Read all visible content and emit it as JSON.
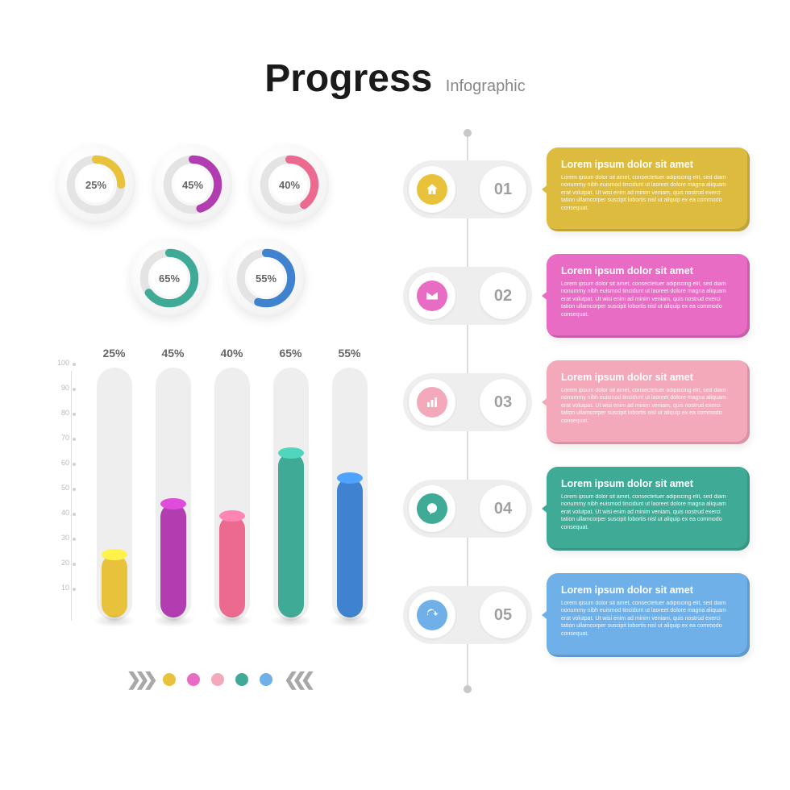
{
  "title": {
    "main": "Progress",
    "sub": "Infographic"
  },
  "colors": {
    "yellow": "#e9c23b",
    "purple": "#b23db0",
    "pink": "#ec6a8f",
    "teal": "#3fab97",
    "blue": "#3e82d0",
    "card_yellow": "#dcbb3f",
    "card_magenta": "#e86cc3",
    "card_pink": "#f4a9bb",
    "card_teal": "#3fab97",
    "card_blue": "#6fb0e8",
    "track": "#eeeeee",
    "grid": "#e0e0e0",
    "text_muted": "#888888",
    "bubble": "#eeeeee"
  },
  "donuts": [
    {
      "value": 25,
      "label": "25%",
      "color": "#e9c23b"
    },
    {
      "value": 45,
      "label": "45%",
      "color": "#b23db0"
    },
    {
      "value": 40,
      "label": "40%",
      "color": "#ec6a8f"
    },
    {
      "value": 65,
      "label": "65%",
      "color": "#3fab97"
    },
    {
      "value": 55,
      "label": "55%",
      "color": "#3e82d0"
    }
  ],
  "barchart": {
    "ylim": [
      0,
      100
    ],
    "yticks": [
      10,
      20,
      30,
      40,
      50,
      60,
      70,
      80,
      90,
      100
    ],
    "bars": [
      {
        "pct": "25%",
        "value": 25,
        "color": "#e9c23b"
      },
      {
        "pct": "45%",
        "value": 45,
        "color": "#b23db0"
      },
      {
        "pct": "40%",
        "value": 40,
        "color": "#ec6a8f"
      },
      {
        "pct": "65%",
        "value": 65,
        "color": "#3fab97"
      },
      {
        "pct": "55%",
        "value": 55,
        "color": "#3e82d0"
      }
    ]
  },
  "legend_dots": [
    "#e9c23b",
    "#e86cc3",
    "#f4a9bb",
    "#3fab97",
    "#6fb0e8"
  ],
  "timeline": [
    {
      "num": "01",
      "icon": "home",
      "icon_color": "#e9c23b",
      "card_color": "#dcbb3f",
      "title": "Lorem ipsum dolor sit amet",
      "body": "Lorem ipsum dolor sit amet, consectetuer adipiscing elit, sed diam nonummy nibh euismod tincidunt ut laoreet dolore magna aliquam erat volutpat. Ut wisi enim ad minim veniam, quis nostrud exerci tation ullamcorper suscipit lobortis nisl ut aliquip ex ea commodo consequat."
    },
    {
      "num": "02",
      "icon": "mail",
      "icon_color": "#e86cc3",
      "card_color": "#e86cc3",
      "title": "Lorem ipsum dolor sit amet",
      "body": "Lorem ipsum dolor sit amet, consectetuer adipiscing elit, sed diam nonummy nibh euismod tincidunt ut laoreet dolore magna aliquam erat volutpat. Ut wisi enim ad minim veniam, quis nostrud exerci tation ullamcorper suscipit lobortis nisl ut aliquip ex ea commodo consequat."
    },
    {
      "num": "03",
      "icon": "chart",
      "icon_color": "#f4a9bb",
      "card_color": "#f4a9bb",
      "title": "Lorem ipsum dolor sit amet",
      "body": "Lorem ipsum dolor sit amet, consectetuer adipiscing elit, sed diam nonummy nibh euismod tincidunt ut laoreet dolore magna aliquam erat volutpat. Ut wisi enim ad minim veniam, quis nostrud exerci tation ullamcorper suscipit lobortis nisl ut aliquip ex ea commodo consequat."
    },
    {
      "num": "04",
      "icon": "chat",
      "icon_color": "#3fab97",
      "card_color": "#3fab97",
      "title": "Lorem ipsum dolor sit amet",
      "body": "Lorem ipsum dolor sit amet, consectetuer adipiscing elit, sed diam nonummy nibh euismod tincidunt ut laoreet dolore magna aliquam erat volutpat. Ut wisi enim ad minim veniam, quis nostrud exerci tation ullamcorper suscipit lobortis nisl ut aliquip ex ea commodo consequat."
    },
    {
      "num": "05",
      "icon": "sync",
      "icon_color": "#6fb0e8",
      "card_color": "#6fb0e8",
      "title": "Lorem ipsum dolor sit amet",
      "body": "Lorem ipsum dolor sit amet, consectetuer adipiscing elit, sed diam nonummy nibh euismod tincidunt ut laoreet dolore magna aliquam erat volutpat. Ut wisi enim ad minim veniam, quis nostrud exerci tation ullamcorper suscipit lobortis nisl ut aliquip ex ea commodo consequat."
    }
  ]
}
